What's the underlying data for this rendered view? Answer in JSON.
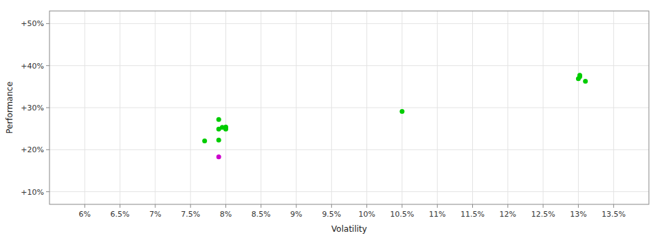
{
  "chart_data": {
    "type": "scatter",
    "xlabel": "Volatility",
    "ylabel": "Performance",
    "xlim": [
      0.055,
      0.14
    ],
    "ylim": [
      0.07,
      0.53
    ],
    "xticks": [
      {
        "value": 0.06,
        "label": "6%"
      },
      {
        "value": 0.065,
        "label": "6.5%"
      },
      {
        "value": 0.07,
        "label": "7%"
      },
      {
        "value": 0.075,
        "label": "7.5%"
      },
      {
        "value": 0.08,
        "label": "8%"
      },
      {
        "value": 0.085,
        "label": "8.5%"
      },
      {
        "value": 0.09,
        "label": "9%"
      },
      {
        "value": 0.095,
        "label": "9.5%"
      },
      {
        "value": 0.1,
        "label": "10%"
      },
      {
        "value": 0.105,
        "label": "10.5%"
      },
      {
        "value": 0.11,
        "label": "11%"
      },
      {
        "value": 0.115,
        "label": "11.5%"
      },
      {
        "value": 0.12,
        "label": "12%"
      },
      {
        "value": 0.125,
        "label": "12.5%"
      },
      {
        "value": 0.13,
        "label": "13%"
      },
      {
        "value": 0.135,
        "label": "13.5%"
      }
    ],
    "yticks": [
      {
        "value": 0.1,
        "label": "+10%"
      },
      {
        "value": 0.2,
        "label": "+20%"
      },
      {
        "value": 0.3,
        "label": "+30%"
      },
      {
        "value": 0.4,
        "label": "+40%"
      },
      {
        "value": 0.5,
        "label": "+50%"
      }
    ],
    "grid": true,
    "series": [
      {
        "color": "#00cc00",
        "x": [
          0.077,
          0.079,
          0.079,
          0.0795,
          0.08,
          0.08,
          0.079,
          0.105,
          0.13,
          0.1302,
          0.1302,
          0.131
        ],
        "values": [
          0.221,
          0.223,
          0.249,
          0.253,
          0.249,
          0.254,
          0.272,
          0.291,
          0.369,
          0.374,
          0.377,
          0.363
        ]
      },
      {
        "color": "#cc00cc",
        "x": [
          0.079
        ],
        "values": [
          0.183
        ]
      }
    ]
  }
}
